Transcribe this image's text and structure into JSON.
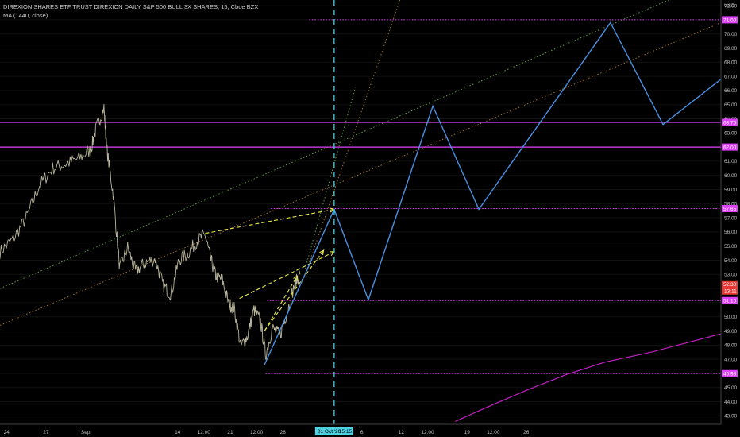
{
  "header": {
    "symbol_line": "DIREXION SHARES ETF TRUST DIREXION DAILY S&P 500 BULL 3X SHARES, 15, Cboe BZX",
    "indicator_line": "MA (1440, close)"
  },
  "colors": {
    "background": "#000000",
    "price_series": "#b8b59a",
    "projection": "#4a90e2",
    "level_line": "#e040fb",
    "forecast_arrows": "#e8e84a",
    "channel_green": "#5f9a3a",
    "channel_orange": "#a0702a",
    "cursor_line": "#4dd0e1",
    "moving_average": "#c020c0",
    "current_price_box": "#e53935"
  },
  "chart_data": {
    "type": "line",
    "currency": "USD",
    "ylim": [
      42.4,
      72.4
    ],
    "y_ticks": [
      43,
      44,
      45,
      46,
      47,
      48,
      49,
      50,
      51,
      52,
      53,
      54,
      55,
      56,
      57,
      58,
      59,
      60,
      61,
      62,
      63,
      64,
      65,
      66,
      67,
      68,
      69,
      70,
      71,
      72
    ],
    "x_ticks": [
      {
        "label": "24",
        "x": 0.5
      },
      {
        "label": "27",
        "x": 3.5
      },
      {
        "label": "Sep",
        "x": 6.5
      },
      {
        "label": "14",
        "x": 13.5
      },
      {
        "label": "12:00",
        "x": 15.5
      },
      {
        "label": "21",
        "x": 17.5
      },
      {
        "label": "12:00",
        "x": 19.5
      },
      {
        "label": "28",
        "x": 21.5
      },
      {
        "label": "6",
        "x": 27.5
      },
      {
        "label": "12",
        "x": 30.5
      },
      {
        "label": "12:00",
        "x": 32.5
      },
      {
        "label": "19",
        "x": 35.5
      },
      {
        "label": "12:00",
        "x": 37.5
      },
      {
        "label": "26",
        "x": 40
      }
    ],
    "xlim": [
      0,
      54.8
    ],
    "price_series_anchors": [
      [
        0,
        54.6
      ],
      [
        1,
        55.5
      ],
      [
        2,
        57.0
      ],
      [
        3,
        59.3
      ],
      [
        4,
        60.5
      ],
      [
        5,
        60.8
      ],
      [
        6,
        61.2
      ],
      [
        6.9,
        61.8
      ],
      [
        7.3,
        63.3
      ],
      [
        7.9,
        64.8
      ],
      [
        8.1,
        62.0
      ],
      [
        8.6,
        58.7
      ],
      [
        9.1,
        53.4
      ],
      [
        9.7,
        54.9
      ],
      [
        10.3,
        53.2
      ],
      [
        11.0,
        53.8
      ],
      [
        11.8,
        54.1
      ],
      [
        12.4,
        52.2
      ],
      [
        13.0,
        51.6
      ],
      [
        13.6,
        54.0
      ],
      [
        14.3,
        54.5
      ],
      [
        15.0,
        55.4
      ],
      [
        15.6,
        55.8
      ],
      [
        16.0,
        54.1
      ],
      [
        16.4,
        52.9
      ],
      [
        16.9,
        52.6
      ],
      [
        17.4,
        50.9
      ],
      [
        17.8,
        50.6
      ],
      [
        18.3,
        47.9
      ],
      [
        18.8,
        48.6
      ],
      [
        19.3,
        50.5
      ],
      [
        19.8,
        49.7
      ],
      [
        20.2,
        47.3
      ],
      [
        20.7,
        49.2
      ],
      [
        21.3,
        48.7
      ],
      [
        21.8,
        50.3
      ],
      [
        22.4,
        52.3
      ],
      [
        22.8,
        53.0
      ]
    ],
    "projection_path": [
      [
        20.1,
        46.6
      ],
      [
        25.4,
        57.6
      ],
      [
        28.0,
        51.2
      ],
      [
        32.9,
        64.9
      ],
      [
        36.4,
        57.6
      ],
      [
        46.4,
        70.8
      ],
      [
        50.4,
        63.6
      ],
      [
        54.8,
        66.8
      ]
    ],
    "levels": [
      {
        "value": 71.0,
        "label": "71.00",
        "style": "dotted",
        "x_from": 23.5
      },
      {
        "value": 63.75,
        "label": "63.75",
        "style": "solid",
        "x_from": 0
      },
      {
        "value": 62.0,
        "label": "62.00",
        "style": "solid",
        "x_from": 0
      },
      {
        "value": 57.65,
        "label": "57.65",
        "style": "dotted",
        "x_from": 20.6
      },
      {
        "value": 51.15,
        "label": "51.15",
        "style": "dotted",
        "x_from": 20.3
      },
      {
        "value": 45.98,
        "label": "45.98",
        "style": "dotted",
        "x_from": 20.2
      }
    ],
    "current_price": {
      "value": 52.3,
      "label": "52.30",
      "countdown": "13:11"
    },
    "cursor": {
      "x": 25.4,
      "date_label": "01 Oct '20",
      "time_label": "15:15"
    },
    "moving_average_anchors": [
      [
        34.6,
        42.6
      ],
      [
        37.0,
        43.6
      ],
      [
        40.0,
        44.8
      ],
      [
        43.0,
        45.9
      ],
      [
        46.0,
        46.8
      ],
      [
        49.5,
        47.5
      ],
      [
        54.8,
        48.8
      ]
    ],
    "channel_lines": [
      {
        "color_key": "channel_green",
        "from": [
          0,
          52.0
        ],
        "to": [
          54.8,
          74.0
        ]
      },
      {
        "color_key": "channel_orange",
        "from": [
          0,
          49.4
        ],
        "to": [
          54.8,
          70.8
        ]
      },
      {
        "color_key": "channel_orange",
        "from": [
          23.2,
          53.0
        ],
        "to": [
          30.4,
          72.4
        ]
      },
      {
        "color_key": "channel_green",
        "from": [
          23.2,
          53.4
        ],
        "to": [
          27.0,
          66.2
        ]
      }
    ],
    "forecast_arrows": [
      {
        "from": [
          15.6,
          55.9
        ],
        "to": [
          25.4,
          57.6
        ]
      },
      {
        "from": [
          18.2,
          51.3
        ],
        "to": [
          25.4,
          54.6
        ]
      },
      {
        "from": [
          20.1,
          49.0
        ],
        "to": [
          24.6,
          54.7
        ]
      },
      {
        "from": [
          20.1,
          49.0
        ],
        "to": [
          22.6,
          52.9
        ]
      }
    ]
  }
}
